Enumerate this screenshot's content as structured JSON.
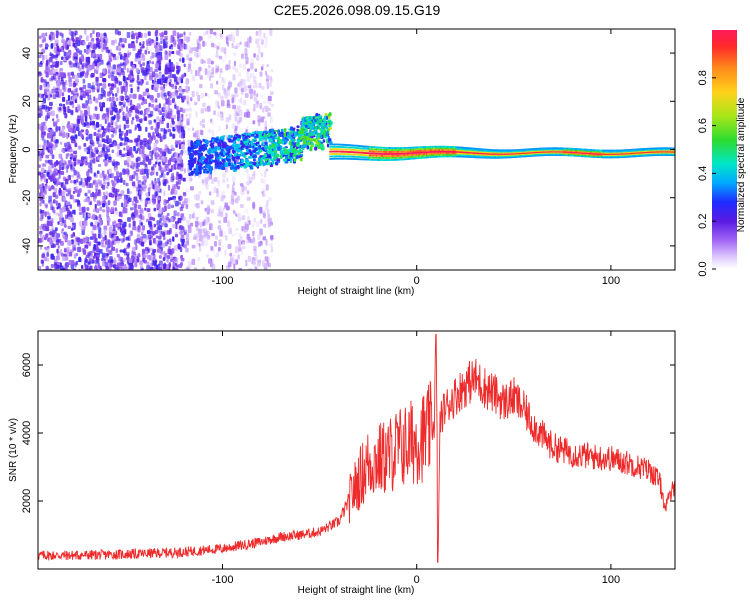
{
  "page": {
    "title": "C2E5.2026.098.09.15.G19"
  },
  "colors": {
    "snr_line": "#ee2a2a",
    "core_red": "#ee2244",
    "core_green": "#22dd55",
    "core_cyan": "#22bbee",
    "noise_purple": "#7a22e6",
    "axis": "#000000"
  },
  "chart_data": [
    {
      "type": "heatmap",
      "title": "C2E5.2026.098.09.15.G19",
      "xlabel": "Height of straight line (km)",
      "ylabel": "Frequency (Hz)",
      "xlim": [
        -195,
        133
      ],
      "ylim": [
        -50,
        50
      ],
      "xticks": [
        -100,
        0,
        100
      ],
      "yticks": [
        -40,
        -20,
        0,
        20,
        40
      ],
      "xticklabels": [
        "-100",
        "0",
        "100"
      ],
      "yticklabels": [
        "-40",
        "-20",
        "0",
        "20",
        "40"
      ],
      "colorbar": {
        "label": "Normalized spectral amplitude",
        "range": [
          0,
          1
        ],
        "ticks": [
          0.0,
          0.2,
          0.4,
          0.6,
          0.8
        ],
        "ticklabels": [
          "0.0",
          "0.2",
          "0.4",
          "0.6",
          "0.8"
        ]
      },
      "regions": [
        {
          "name": "dense noise",
          "x": [
            -195,
            -120
          ],
          "freq_spread": 50,
          "amplitude": 0.1
        },
        {
          "name": "sparse noise",
          "x": [
            -120,
            -80
          ],
          "freq_spread": 50,
          "amplitude": 0.05
        },
        {
          "name": "emerging signal",
          "x": [
            -118,
            -60
          ],
          "center_hz": [
            -3,
            5
          ],
          "amplitude": 0.3
        },
        {
          "name": "signal bump",
          "x": [
            -60,
            -45
          ],
          "center_hz": 8,
          "amplitude": 0.45
        },
        {
          "name": "strong signal",
          "x": [
            -45,
            133
          ],
          "center_hz": -1,
          "amplitude": 0.95
        }
      ]
    },
    {
      "type": "line",
      "xlabel": "Height of straight line (km)",
      "ylabel": "SNR (10 * v/v)",
      "xlim": [
        -195,
        133
      ],
      "ylim": [
        0,
        7000
      ],
      "xticks": [
        -100,
        0,
        100
      ],
      "yticks": [
        2000,
        4000,
        6000
      ],
      "xticklabels": [
        "-100",
        "0",
        "100"
      ],
      "yticklabels": [
        "2000",
        "4000",
        "6000"
      ],
      "series": [
        {
          "name": "SNR",
          "x": [
            -195,
            -180,
            -160,
            -140,
            -120,
            -100,
            -90,
            -80,
            -70,
            -60,
            -50,
            -40,
            -35,
            -30,
            -25,
            -20,
            -15,
            -10,
            -5,
            0,
            5,
            9,
            10,
            11,
            12,
            14,
            20,
            25,
            30,
            35,
            40,
            45,
            50,
            55,
            60,
            65,
            70,
            80,
            90,
            100,
            110,
            120,
            125,
            128,
            133
          ],
          "values": [
            400,
            400,
            420,
            450,
            500,
            600,
            700,
            800,
            950,
            1000,
            1100,
            1400,
            2000,
            2600,
            3100,
            3200,
            3300,
            3550,
            3650,
            3800,
            3950,
            4250,
            6900,
            200,
            4300,
            4700,
            5100,
            5400,
            5600,
            5350,
            5150,
            4900,
            5050,
            4700,
            4250,
            3900,
            3600,
            3400,
            3300,
            3250,
            3100,
            2900,
            2600,
            1800,
            2500
          ],
          "noise_amplitude_fraction": 0.12
        }
      ]
    }
  ]
}
